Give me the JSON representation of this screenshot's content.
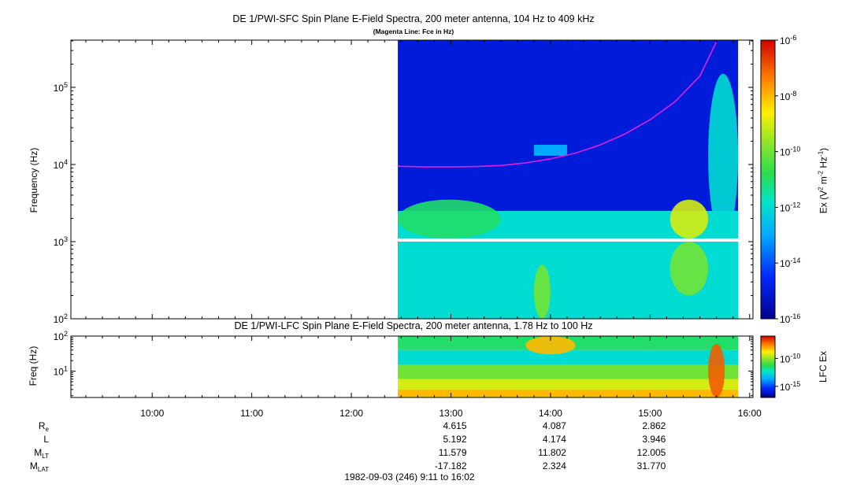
{
  "titles": {
    "main": "DE 1/PWI-SFC  Spin Plane E-Field Spectra, 200 meter antenna, 104 Hz to 409 kHz",
    "subtitle": "(Magenta Line: Fce in Hz)",
    "lfc": "DE 1/PWI-LFC  Spin Plane E-Field Spectra, 200 meter antenna, 1.78 Hz to 100 Hz"
  },
  "chart_data": [
    {
      "type": "heatmap",
      "name": "SFC spectrogram",
      "ylabel": "Frequency (Hz)",
      "yscale": "log",
      "ylim": [
        100,
        409000
      ],
      "yticks": [
        {
          "base": "10",
          "exp": "2"
        },
        {
          "base": "10",
          "exp": "3"
        },
        {
          "base": "10",
          "exp": "4"
        },
        {
          "base": "10",
          "exp": "5"
        }
      ],
      "xlim": [
        "09:11",
        "16:02"
      ],
      "data_start": "12:28",
      "data_end": "15:53",
      "gap_band_hz": [
        1000,
        1100
      ],
      "colorbar": {
        "label_pre": "Ex (V",
        "label_sup1": "2",
        "label_mid": " m",
        "label_sup2": "-2",
        "label_mid2": " Hz",
        "label_sup3": "-1",
        "label_post": ")",
        "scale": "log",
        "range": [
          1e-16,
          1e-06
        ],
        "ticks": [
          {
            "base": "10",
            "exp": "-6"
          },
          {
            "base": "10",
            "exp": "-8"
          },
          {
            "base": "10",
            "exp": "-10"
          },
          {
            "base": "10",
            "exp": "-12"
          },
          {
            "base": "10",
            "exp": "-14"
          },
          {
            "base": "10",
            "exp": "-16"
          }
        ]
      },
      "fce_line": {
        "color": "#e020e0",
        "time": [
          "12:28",
          "12:45",
          "13:00",
          "13:15",
          "13:30",
          "13:45",
          "14:00",
          "14:15",
          "14:30",
          "14:45",
          "15:00",
          "15:15",
          "15:30",
          "15:40"
        ],
        "freq_hz": [
          9500,
          9300,
          9300,
          9400,
          9700,
          10500,
          11800,
          14000,
          18000,
          25000,
          38000,
          65000,
          140000,
          390000
        ]
      },
      "features": [
        {
          "desc": "background",
          "time": [
            "12:28",
            "15:53"
          ],
          "freq_hz": [
            100,
            409000
          ],
          "level": 1e-15
        },
        {
          "desc": "low-frequency plasma wave emission",
          "time": [
            "12:28",
            "15:53"
          ],
          "freq_hz": [
            100,
            2500
          ],
          "level": 1e-12
        },
        {
          "desc": "emission band",
          "time": [
            "12:28",
            "13:30"
          ],
          "freq_hz": [
            1100,
            3500
          ],
          "level": 1e-11
        },
        {
          "desc": "emission patch",
          "time": [
            "13:50",
            "14:00"
          ],
          "freq_hz": [
            100,
            500
          ],
          "level": 1e-10
        },
        {
          "desc": "emission blob",
          "time": [
            "15:12",
            "15:35"
          ],
          "freq_hz": [
            1100,
            3500
          ],
          "level": 1e-09
        },
        {
          "desc": "emission patch",
          "time": [
            "15:12",
            "15:35"
          ],
          "freq_hz": [
            200,
            1000
          ],
          "level": 1e-10
        },
        {
          "desc": "broadband emission",
          "time": [
            "15:35",
            "15:53"
          ],
          "freq_hz": [
            1100,
            150000
          ],
          "level": 1e-12
        },
        {
          "desc": "whistler band",
          "time": [
            "13:50",
            "14:10"
          ],
          "freq_hz": [
            13000,
            18000
          ],
          "level": 1e-13
        }
      ]
    },
    {
      "type": "heatmap",
      "name": "LFC spectrogram",
      "ylabel": "Freq (Hz)",
      "yscale": "log",
      "ylim": [
        1.78,
        100
      ],
      "yticks": [
        {
          "base": "10",
          "exp": "1"
        },
        {
          "base": "10",
          "exp": "2"
        }
      ],
      "xlim": [
        "09:11",
        "16:02"
      ],
      "data_start": "12:28",
      "data_end": "15:53",
      "colorbar": {
        "label": "LFC Ex",
        "scale": "log",
        "ticks": [
          {
            "base": "10",
            "exp": "-10"
          },
          {
            "base": "10",
            "exp": "-15"
          }
        ]
      },
      "bands": [
        {
          "freq_hz": [
            1.78,
            3
          ],
          "level": 1e-08
        },
        {
          "freq_hz": [
            3,
            6
          ],
          "level": 1e-09
        },
        {
          "freq_hz": [
            6,
            15
          ],
          "level": 1e-10
        },
        {
          "freq_hz": [
            15,
            40
          ],
          "level": 1e-12
        },
        {
          "freq_hz": [
            40,
            100
          ],
          "level": 1e-11
        }
      ],
      "features": [
        {
          "desc": "intense emission",
          "time": [
            "13:45",
            "14:15"
          ],
          "freq_hz": [
            30,
            100
          ],
          "level": 1e-08
        },
        {
          "desc": "spike",
          "time": [
            "15:35",
            "15:45"
          ],
          "freq_hz": [
            1.78,
            60
          ],
          "level": 1e-07
        }
      ]
    }
  ],
  "time_axis": {
    "ticks": [
      "10:00",
      "11:00",
      "12:00",
      "13:00",
      "14:00",
      "15:00",
      "16:00"
    ]
  },
  "orbit": {
    "labels": [
      {
        "main": "R",
        "sub": "e"
      },
      {
        "main": "L",
        "sub": ""
      },
      {
        "main": "M",
        "sub": "LT"
      },
      {
        "main": "M",
        "sub": "LAT"
      }
    ],
    "times": [
      "13:00",
      "14:00",
      "15:00"
    ],
    "rows": [
      [
        "4.615",
        "4.087",
        "2.862"
      ],
      [
        "5.192",
        "4.174",
        "3.946"
      ],
      [
        "11.579",
        "11.802",
        "12.005"
      ],
      [
        "-17.182",
        "2.324",
        "31.770"
      ]
    ]
  },
  "date_line": "1982-09-03 (246) 9:11 to 16:02"
}
